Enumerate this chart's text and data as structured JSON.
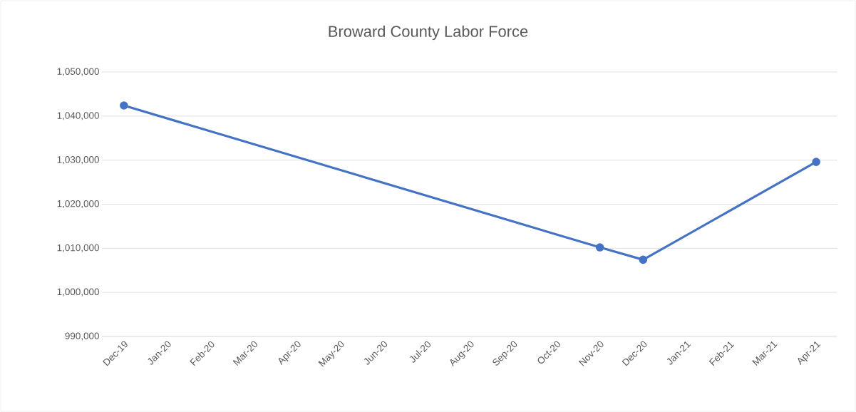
{
  "chart_data": {
    "type": "line",
    "title": "Broward County Labor Force",
    "x": [
      "2019-12",
      "2020-11",
      "2020-12",
      "2021-04"
    ],
    "series": [
      {
        "color": "#4472c4",
        "values": [
          1042400,
          1010200,
          1007400,
          1029600
        ]
      }
    ],
    "xlim": [
      "2019-11-16",
      "2021-04-16"
    ],
    "xticks": [
      {
        "value": "2019-12",
        "label": "Dec-19"
      },
      {
        "value": "2020-01",
        "label": "Jan-20"
      },
      {
        "value": "2020-02",
        "label": "Feb-20"
      },
      {
        "value": "2020-03",
        "label": "Mar-20"
      },
      {
        "value": "2020-04",
        "label": "Apr-20"
      },
      {
        "value": "2020-05",
        "label": "May-20"
      },
      {
        "value": "2020-06",
        "label": "Jun-20"
      },
      {
        "value": "2020-07",
        "label": "Jul-20"
      },
      {
        "value": "2020-08",
        "label": "Aug-20"
      },
      {
        "value": "2020-09",
        "label": "Sep-20"
      },
      {
        "value": "2020-10",
        "label": "Oct-20"
      },
      {
        "value": "2020-11",
        "label": "Nov-20"
      },
      {
        "value": "2020-12",
        "label": "Dec-20"
      },
      {
        "value": "2021-01",
        "label": "Jan-21"
      },
      {
        "value": "2021-02",
        "label": "Feb-21"
      },
      {
        "value": "2021-03",
        "label": "Mar-21"
      },
      {
        "value": "2021-04",
        "label": "Apr-21"
      }
    ],
    "ylim": [
      990000,
      1050000
    ],
    "yticks": [
      {
        "value": 990000,
        "label": "990,000"
      },
      {
        "value": 1000000,
        "label": "1,000,000"
      },
      {
        "value": 1010000,
        "label": "1,010,000"
      },
      {
        "value": 1020000,
        "label": "1,020,000"
      },
      {
        "value": 1030000,
        "label": "1,030,000"
      },
      {
        "value": 1040000,
        "label": "1,040,000"
      },
      {
        "value": 1050000,
        "label": "1,050,000"
      }
    ],
    "grid": "y",
    "marker": "circle",
    "line_style": "solid"
  }
}
